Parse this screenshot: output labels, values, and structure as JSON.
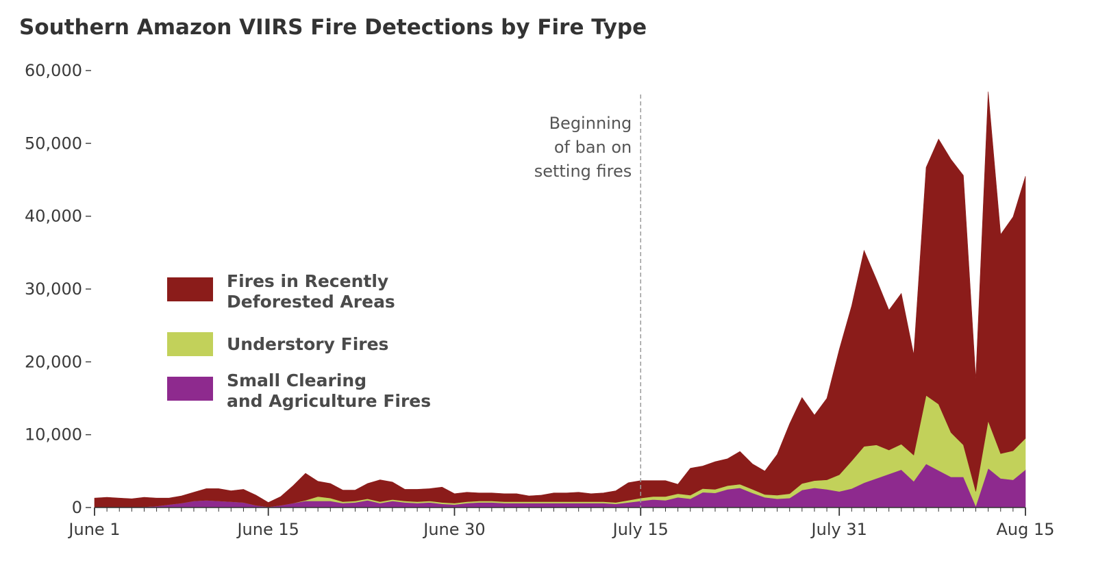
{
  "chart_data": {
    "type": "area",
    "stacked": true,
    "title": "Southern Amazon VIIRS Fire Detections by Fire Type",
    "xlabel": "",
    "ylabel": "",
    "x_start": "June 1",
    "x_end": "Aug 15",
    "x_ticks": [
      {
        "day": 0,
        "label": "June 1"
      },
      {
        "day": 14,
        "label": "June 15"
      },
      {
        "day": 29,
        "label": "June 30"
      },
      {
        "day": 44,
        "label": "July 15"
      },
      {
        "day": 60,
        "label": "July 31"
      },
      {
        "day": 75,
        "label": "Aug 15"
      }
    ],
    "y_ticks": [
      {
        "value": 0,
        "label": "0"
      },
      {
        "value": 10000,
        "label": "10,000"
      },
      {
        "value": 20000,
        "label": "20,000"
      },
      {
        "value": 30000,
        "label": "30,000"
      },
      {
        "value": 40000,
        "label": "40,000"
      },
      {
        "value": 50000,
        "label": "50,000"
      },
      {
        "value": 60000,
        "label": "60,000"
      }
    ],
    "ylim": [
      0,
      60000
    ],
    "grid": false,
    "legend_placement": "center-left",
    "annotation": {
      "day": 44,
      "lines": [
        "Beginning",
        "of ban on",
        "setting fires"
      ]
    },
    "days": [
      0,
      1,
      2,
      3,
      4,
      5,
      6,
      7,
      8,
      9,
      10,
      11,
      12,
      13,
      14,
      15,
      16,
      17,
      18,
      19,
      20,
      21,
      22,
      23,
      24,
      25,
      26,
      27,
      28,
      29,
      30,
      31,
      32,
      33,
      34,
      35,
      36,
      37,
      38,
      39,
      40,
      41,
      42,
      43,
      44,
      45,
      46,
      47,
      48,
      49,
      50,
      51,
      52,
      53,
      54,
      55,
      56,
      57,
      58,
      59,
      60,
      61,
      62,
      63,
      64,
      65,
      66,
      67,
      68,
      69,
      70,
      71,
      72,
      73,
      74,
      75
    ],
    "series": [
      {
        "name": "Small Clearing and Agriculture Fires",
        "legend_lines": [
          "Small Clearing",
          "and Agriculture Fires"
        ],
        "color": "#8e2a8e",
        "values": [
          0,
          0,
          0,
          0,
          100,
          200,
          400,
          600,
          900,
          1000,
          900,
          800,
          700,
          300,
          100,
          300,
          600,
          900,
          900,
          900,
          600,
          700,
          1000,
          600,
          900,
          700,
          600,
          700,
          500,
          400,
          600,
          700,
          700,
          600,
          600,
          600,
          600,
          600,
          600,
          600,
          600,
          600,
          500,
          700,
          900,
          1100,
          1000,
          1400,
          1200,
          2100,
          2000,
          2500,
          2700,
          2000,
          1400,
          1200,
          1300,
          2400,
          2700,
          2500,
          2200,
          2600,
          3400,
          4000,
          4600,
          5200,
          3600,
          6000,
          5100,
          4200,
          4200,
          200,
          5400,
          4000,
          3800,
          5200
        ]
      },
      {
        "name": "Understory Fires",
        "legend_lines": [
          "Understory Fires"
        ],
        "color": "#c2d15a",
        "values": [
          0,
          0,
          0,
          0,
          0,
          0,
          0,
          0,
          0,
          0,
          0,
          0,
          0,
          0,
          0,
          0,
          0,
          100,
          600,
          400,
          200,
          200,
          200,
          200,
          200,
          200,
          200,
          200,
          200,
          200,
          200,
          200,
          200,
          200,
          200,
          200,
          200,
          200,
          200,
          200,
          200,
          200,
          200,
          300,
          400,
          400,
          500,
          500,
          500,
          500,
          500,
          500,
          500,
          500,
          400,
          500,
          600,
          900,
          1000,
          1300,
          2300,
          3800,
          5000,
          4600,
          3300,
          3500,
          3600,
          9400,
          9100,
          6100,
          4400,
          2000,
          6500,
          3400,
          4000,
          4300
        ]
      },
      {
        "name": "Fires in Recently Deforested Areas",
        "legend_lines": [
          "Fires in Recently",
          "Deforested Areas"
        ],
        "color": "#8b1c1a",
        "values": [
          1300,
          1400,
          1300,
          1200,
          1300,
          1100,
          900,
          1000,
          1200,
          1600,
          1700,
          1500,
          1800,
          1400,
          600,
          1200,
          2400,
          3700,
          2100,
          2000,
          1600,
          1500,
          2100,
          3000,
          2400,
          1600,
          1700,
          1700,
          2100,
          1300,
          1300,
          1100,
          1100,
          1100,
          1100,
          800,
          900,
          1200,
          1200,
          1300,
          1100,
          1200,
          1600,
          2400,
          2400,
          2200,
          2200,
          1300,
          3700,
          3100,
          3800,
          3700,
          4500,
          3500,
          3200,
          5600,
          9600,
          11800,
          9000,
          11200,
          17200,
          21300,
          26900,
          22700,
          19200,
          20700,
          13800,
          31300,
          36400,
          37500,
          37000,
          15500,
          45200,
          30100,
          32100,
          36000
        ]
      }
    ]
  }
}
